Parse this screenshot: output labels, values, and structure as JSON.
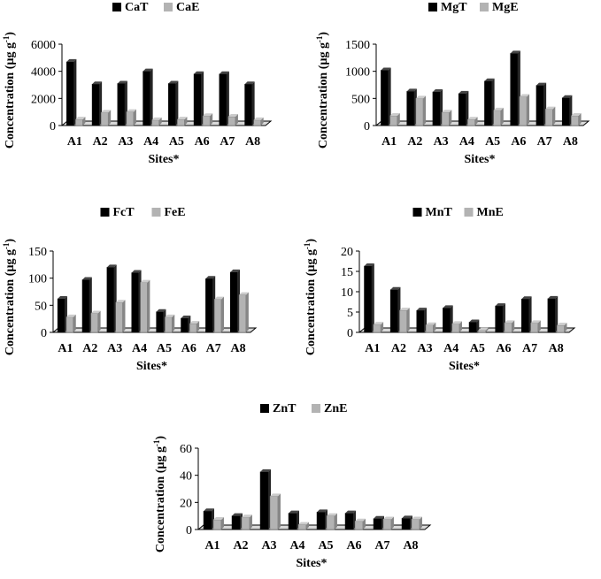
{
  "colors": {
    "total": "#000000",
    "extractable": "#b3b3b3",
    "frame": "#000000",
    "floor": "#d9d9d9"
  },
  "chart_data": [
    {
      "type": "bar",
      "categories": [
        "A1",
        "A2",
        "A3",
        "A4",
        "A5",
        "A6",
        "A7",
        "A8"
      ],
      "series": [
        {
          "name": "CaT",
          "values": [
            4700,
            3050,
            3100,
            4000,
            3100,
            3800,
            3800,
            3050
          ]
        },
        {
          "name": "CaE",
          "values": [
            450,
            950,
            1000,
            400,
            450,
            700,
            650,
            400
          ]
        }
      ],
      "xlabel": "Sites*",
      "ylabel": "Concentration (µg g-1)",
      "ylim": [
        0,
        6000
      ],
      "yticks": [
        0,
        2000,
        4000,
        6000
      ],
      "legend_position": "top"
    },
    {
      "type": "bar",
      "categories": [
        "A1",
        "A2",
        "A3",
        "A4",
        "A5",
        "A6",
        "A7",
        "A8"
      ],
      "series": [
        {
          "name": "MgT",
          "values": [
            1020,
            630,
            620,
            590,
            820,
            1330,
            740,
            510
          ]
        },
        {
          "name": "MgE",
          "values": [
            180,
            500,
            240,
            110,
            280,
            530,
            300,
            180
          ]
        }
      ],
      "xlabel": "Sites*",
      "ylabel": "Concentration (µg g-1)",
      "ylim": [
        0,
        1500
      ],
      "yticks": [
        0,
        500,
        1000,
        1500
      ],
      "legend_position": "top"
    },
    {
      "type": "bar",
      "categories": [
        "A1",
        "A2",
        "A3",
        "A4",
        "A5",
        "A6",
        "A7",
        "A8"
      ],
      "series": [
        {
          "name": "FcT",
          "values": [
            62,
            97,
            120,
            110,
            38,
            26,
            99,
            111
          ]
        },
        {
          "name": "FeE",
          "values": [
            28,
            35,
            55,
            92,
            28,
            16,
            61,
            69
          ]
        }
      ],
      "xlabel": "Sites*",
      "ylabel": "Concentration (µg g-1)",
      "ylim": [
        0,
        150
      ],
      "yticks": [
        0,
        50,
        100,
        150
      ],
      "legend_position": "top"
    },
    {
      "type": "bar",
      "categories": [
        "A1",
        "A2",
        "A3",
        "A4",
        "A5",
        "A6",
        "A7",
        "A8"
      ],
      "series": [
        {
          "name": "MnT",
          "values": [
            16.3,
            10.5,
            5.4,
            6.0,
            2.5,
            6.5,
            8.2,
            8.3
          ]
        },
        {
          "name": "MnE",
          "values": [
            1.9,
            5.4,
            1.8,
            2.1,
            0.5,
            2.3,
            2.3,
            1.7
          ]
        }
      ],
      "xlabel": "Sites*",
      "ylabel": "Concentration (µg g-1)",
      "ylim": [
        0,
        20
      ],
      "yticks": [
        0,
        5,
        10,
        15,
        20
      ],
      "legend_position": "top"
    },
    {
      "type": "bar",
      "categories": [
        "A1",
        "A2",
        "A3",
        "A4",
        "A5",
        "A6",
        "A7",
        "A8"
      ],
      "series": [
        {
          "name": "ZnT",
          "values": [
            13.5,
            10.0,
            42.5,
            12.0,
            12.8,
            12.0,
            8.0,
            8.2
          ]
        },
        {
          "name": "ZnE",
          "values": [
            7.2,
            9.0,
            24.5,
            3.5,
            10.0,
            6.0,
            7.5,
            7.5
          ]
        }
      ],
      "xlabel": "Sites*",
      "ylabel": "Concentration (µg g-1)",
      "ylim": [
        0,
        60
      ],
      "yticks": [
        0,
        20,
        40,
        60
      ],
      "legend_position": "top"
    }
  ]
}
